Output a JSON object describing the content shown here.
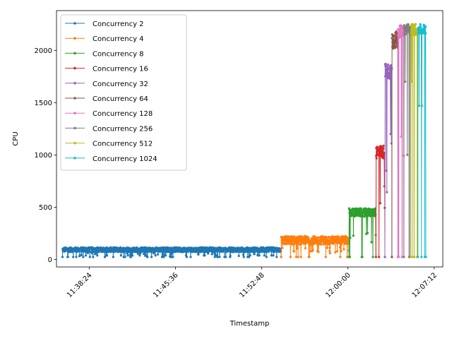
{
  "chart_data": {
    "type": "line",
    "xlabel": "Timestamp",
    "ylabel": "CPU",
    "x_ticks": [
      "11:38:24",
      "11:45:36",
      "11:52:48",
      "12:00:00",
      "12:07:12"
    ],
    "y_ticks": [
      0,
      500,
      1000,
      1500,
      2000
    ],
    "xlim": [
      "11:35:40",
      "12:07:55"
    ],
    "ylim": [
      -70,
      2380
    ],
    "grid": false,
    "legend_position": "upper left",
    "series": [
      {
        "name": "Concurrency 2",
        "color": "#1f77b4",
        "start": "11:36:10",
        "end": "11:54:25",
        "base": 95,
        "spread": 45,
        "dips": [
          25,
          30,
          40
        ]
      },
      {
        "name": "Concurrency 4",
        "color": "#ff7f0e",
        "start": "11:54:25",
        "end": "12:00:05",
        "base": 185,
        "spread": 80,
        "dips": [
          25,
          60,
          80
        ]
      },
      {
        "name": "Concurrency 8",
        "color": "#2ca02c",
        "start": "12:00:05",
        "end": "12:02:20",
        "base": 450,
        "spread": 80,
        "dips": [
          25,
          160,
          350
        ]
      },
      {
        "name": "Concurrency 16",
        "color": "#d62728",
        "start": "12:02:20",
        "end": "12:03:05",
        "base": 1030,
        "spread": 130,
        "dips": [
          25,
          300,
          700
        ]
      },
      {
        "name": "Concurrency 32",
        "color": "#9467bd",
        "start": "12:03:05",
        "end": "12:03:40",
        "base": 1800,
        "spread": 150,
        "dips": [
          25,
          600,
          1200
        ]
      },
      {
        "name": "Concurrency 64",
        "color": "#8c564b",
        "start": "12:03:40",
        "end": "12:04:10",
        "base": 2100,
        "spread": 170,
        "dips": [
          25,
          800,
          1600
        ]
      },
      {
        "name": "Concurrency 128",
        "color": "#e377c2",
        "start": "12:04:10",
        "end": "12:04:40",
        "base": 2180,
        "spread": 120,
        "dips": [
          25,
          900,
          1700
        ]
      },
      {
        "name": "Concurrency 256",
        "color": "#7f7f7f",
        "start": "12:04:40",
        "end": "12:05:15",
        "base": 2200,
        "spread": 110,
        "dips": [
          25,
          1000,
          1700
        ]
      },
      {
        "name": "Concurrency 512",
        "color": "#bcbd22",
        "start": "12:05:15",
        "end": "12:05:50",
        "base": 2200,
        "spread": 110,
        "dips": [
          25,
          1000,
          1700
        ]
      },
      {
        "name": "Concurrency 1024",
        "color": "#17becf",
        "start": "12:05:50",
        "end": "12:06:30",
        "base": 2200,
        "spread": 100,
        "dips": [
          25,
          1200,
          1470
        ]
      }
    ]
  }
}
